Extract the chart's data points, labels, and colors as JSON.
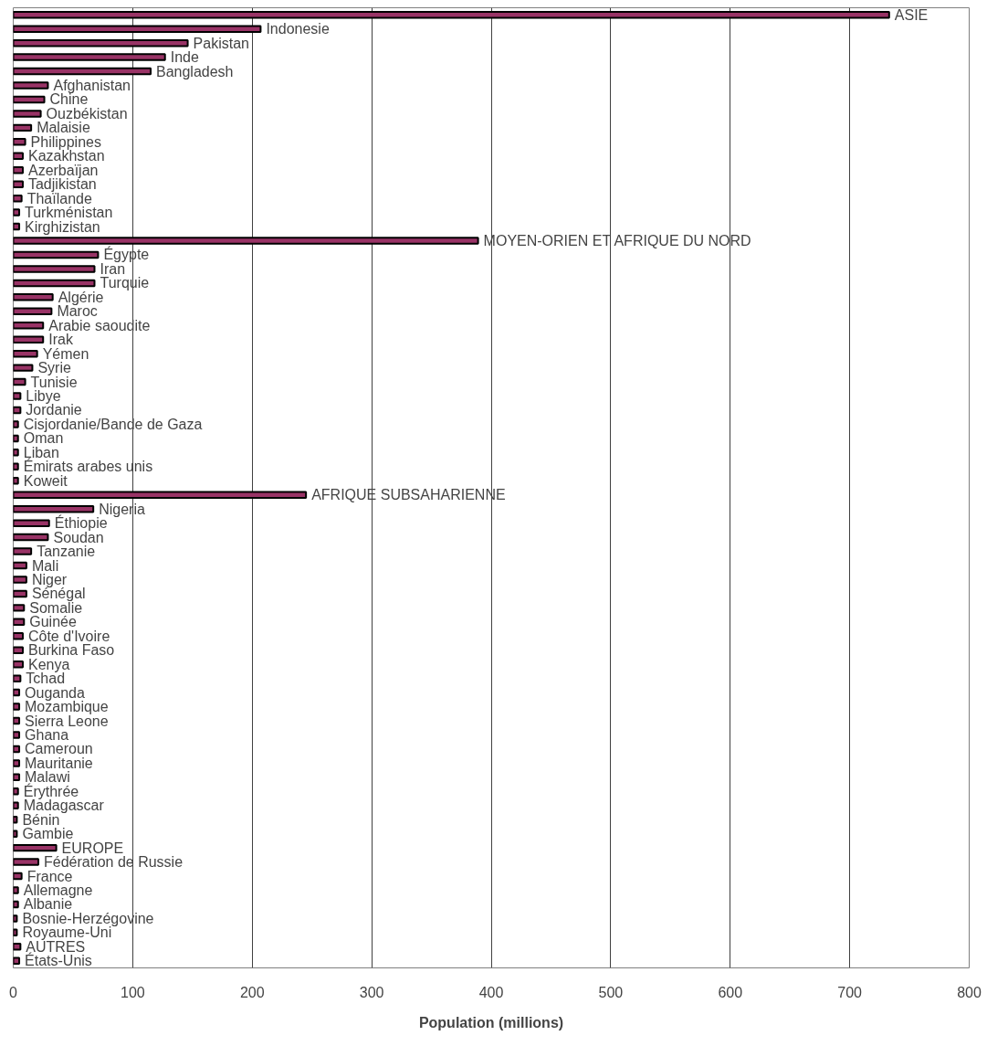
{
  "chart_data": {
    "type": "bar",
    "orientation": "horizontal",
    "xlabel": "Population (millions)",
    "categories": [
      "ASIE",
      "Indonesie",
      "Pakistan",
      "Inde",
      "Bangladesh",
      "Afghanistan",
      "Chine",
      "Ouzbékistan",
      "Malaisie",
      "Philippines",
      "Kazakhstan",
      "Azerbaïjan",
      "Tadjikistan",
      "Thaïlande",
      "Turkménistan",
      "Kirghizistan",
      "MOYEN-ORIEN ET AFRIQUE DU NORD",
      "Égypte",
      "Iran",
      "Turquie",
      "Algérie",
      "Maroc",
      "Arabie saoudite",
      "Irak",
      "Yémen",
      "Syrie",
      "Tunisie",
      "Libye",
      "Jordanie",
      "Cisjordanie/Bande de Gaza",
      "Oman",
      "Liban",
      "Émirats arabes unis",
      "Koweit",
      "AFRIQUE SUBSAHARIENNE",
      "Nigeria",
      "Éthiopie",
      "Soudan",
      "Tanzanie",
      "Mali",
      "Niger",
      "Sénégal",
      "Somalie",
      "Guinée",
      "Côte d'Ivoire",
      "Burkina Faso",
      "Kenya",
      "Tchad",
      "Ouganda",
      "Mozambique",
      "Sierra Leone",
      "Ghana",
      "Cameroun",
      "Mauritanie",
      "Malawi",
      "Érythrée",
      "Madagascar",
      "Bénin",
      "Gambie",
      "EUROPE",
      "Fédération de Russie",
      "France",
      "Allemagne",
      "Albanie",
      "Bosnie-Herzégovine",
      "Royaume-Uni",
      "AUTRES",
      "États-Unis"
    ],
    "values": [
      733,
      207,
      146,
      127,
      115,
      29,
      26,
      23,
      15,
      10,
      8,
      8,
      8,
      7,
      5,
      5,
      389,
      71,
      68,
      68,
      33,
      32,
      25,
      25,
      20,
      16,
      10,
      6,
      6,
      4,
      4,
      4,
      4,
      4,
      245,
      67,
      30,
      29,
      15,
      11,
      11,
      11,
      9,
      9,
      8,
      8,
      8,
      6,
      5,
      5,
      5,
      5,
      5,
      5,
      5,
      4,
      4,
      3,
      3,
      36,
      21,
      7,
      4,
      4,
      3,
      3,
      6,
      5
    ],
    "color": "#993366",
    "xlim": [
      0,
      800
    ],
    "xticks": [
      0,
      100,
      200,
      300,
      400,
      500,
      600,
      700,
      800
    ],
    "grid": "x",
    "tick_labels": "x"
  }
}
